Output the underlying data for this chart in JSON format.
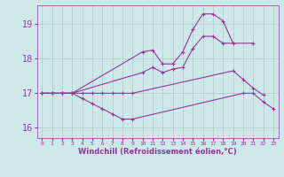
{
  "xlabel": "Windchill (Refroidissement éolien,°C)",
  "bg_color": "#cce8e8",
  "grid_color": "#b0c8c8",
  "line_color": "#993399",
  "ylim": [
    15.7,
    19.55
  ],
  "xlim": [
    -0.5,
    23.5
  ],
  "yticks": [
    16,
    17,
    18,
    19
  ],
  "xticks": [
    0,
    1,
    2,
    3,
    4,
    5,
    6,
    7,
    8,
    9,
    10,
    11,
    12,
    13,
    14,
    15,
    16,
    17,
    18,
    19,
    20,
    21,
    22,
    23
  ],
  "lines": [
    {
      "x": [
        0,
        1,
        2,
        3,
        10,
        11,
        12,
        13,
        14,
        15,
        16,
        17,
        18,
        19
      ],
      "y": [
        17.0,
        17.0,
        17.0,
        17.0,
        18.2,
        18.25,
        17.85,
        17.85,
        18.2,
        18.85,
        19.3,
        19.3,
        19.1,
        18.45
      ]
    },
    {
      "x": [
        0,
        1,
        2,
        3,
        10,
        11,
        12,
        13,
        14,
        15,
        16,
        17,
        18,
        21
      ],
      "y": [
        17.0,
        17.0,
        17.0,
        17.0,
        17.6,
        17.75,
        17.6,
        17.7,
        17.75,
        18.3,
        18.65,
        18.65,
        18.45,
        18.45
      ]
    },
    {
      "x": [
        0,
        1,
        2,
        3,
        4,
        5,
        6,
        7,
        8,
        9,
        19,
        20,
        21,
        22
      ],
      "y": [
        17.0,
        17.0,
        17.0,
        17.0,
        17.0,
        17.0,
        17.0,
        17.0,
        17.0,
        17.0,
        17.65,
        17.4,
        17.15,
        16.95
      ]
    },
    {
      "x": [
        0,
        1,
        2,
        3,
        4,
        5,
        6,
        7,
        8,
        9,
        20,
        21,
        22,
        23
      ],
      "y": [
        17.0,
        17.0,
        17.0,
        17.0,
        16.85,
        16.7,
        16.55,
        16.4,
        16.25,
        16.25,
        17.0,
        17.0,
        16.75,
        16.55
      ]
    }
  ]
}
